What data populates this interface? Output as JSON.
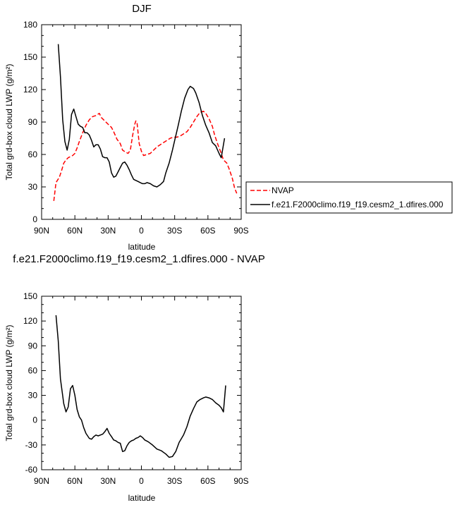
{
  "chart_data": [
    {
      "type": "line",
      "title": "DJF",
      "xlabel": "latitude",
      "ylabel": "Total grd-box cloud LWP (g/m²)",
      "xlim": [
        90,
        -90
      ],
      "ylim": [
        0,
        180
      ],
      "xticks": [
        "90N",
        "60N",
        "30N",
        "0",
        "30S",
        "60S",
        "90S"
      ],
      "yticks": [
        "0",
        "30",
        "60",
        "90",
        "120",
        "150",
        "180"
      ],
      "series": [
        {
          "name": "NVAP",
          "color": "#ff0000",
          "dash": "dashed",
          "points": [
            [
              79,
              17
            ],
            [
              77,
              34
            ],
            [
              74,
              39
            ],
            [
              72,
              45
            ],
            [
              70,
              52
            ],
            [
              68,
              55
            ],
            [
              66,
              57
            ],
            [
              64,
              58
            ],
            [
              62,
              59
            ],
            [
              60,
              61
            ],
            [
              58,
              66
            ],
            [
              56,
              72
            ],
            [
              53,
              80
            ],
            [
              50,
              87
            ],
            [
              47,
              92
            ],
            [
              44,
              95
            ],
            [
              41,
              96
            ],
            [
              38,
              98
            ],
            [
              36,
              94
            ],
            [
              33,
              91
            ],
            [
              30,
              88
            ],
            [
              27,
              85
            ],
            [
              25,
              81
            ],
            [
              22,
              74
            ],
            [
              19,
              70
            ],
            [
              17,
              64
            ],
            [
              14,
              62
            ],
            [
              12,
              61
            ],
            [
              10,
              64
            ],
            [
              8,
              77
            ],
            [
              6,
              88
            ],
            [
              5,
              91
            ],
            [
              4,
              90
            ],
            [
              3,
              80
            ],
            [
              2,
              70
            ],
            [
              0,
              63
            ],
            [
              -2,
              59
            ],
            [
              -5,
              60
            ],
            [
              -8,
              61
            ],
            [
              -11,
              64
            ],
            [
              -14,
              67
            ],
            [
              -17,
              69
            ],
            [
              -20,
              71
            ],
            [
              -23,
              73
            ],
            [
              -26,
              75
            ],
            [
              -29,
              76
            ],
            [
              -32,
              76
            ],
            [
              -35,
              77
            ],
            [
              -38,
              79
            ],
            [
              -41,
              81
            ],
            [
              -44,
              85
            ],
            [
              -47,
              90
            ],
            [
              -50,
              95
            ],
            [
              -53,
              99
            ],
            [
              -56,
              100
            ],
            [
              -58,
              98
            ],
            [
              -61,
              93
            ],
            [
              -64,
              86
            ],
            [
              -66,
              78
            ],
            [
              -69,
              69
            ],
            [
              -72,
              61
            ],
            [
              -74,
              55
            ],
            [
              -77,
              52
            ],
            [
              -79,
              47
            ],
            [
              -82,
              38
            ],
            [
              -84,
              29
            ],
            [
              -86,
              24
            ]
          ]
        },
        {
          "name": "f.e21.F2000climo.f19_f19.cesm2_1.dfires.000",
          "color": "#000000",
          "dash": "solid",
          "points": [
            [
              75,
              162
            ],
            [
              73,
              132
            ],
            [
              71,
              92
            ],
            [
              69,
              72
            ],
            [
              67,
              64
            ],
            [
              65,
              74
            ],
            [
              63,
              97
            ],
            [
              61,
              102
            ],
            [
              59,
              95
            ],
            [
              57,
              88
            ],
            [
              55,
              86
            ],
            [
              53,
              85
            ],
            [
              51,
              80
            ],
            [
              49,
              80
            ],
            [
              47,
              78
            ],
            [
              45,
              73
            ],
            [
              43,
              67
            ],
            [
              41,
              69
            ],
            [
              39,
              69
            ],
            [
              37,
              65
            ],
            [
              35,
              58
            ],
            [
              33,
              57
            ],
            [
              31,
              57
            ],
            [
              29,
              53
            ],
            [
              27,
              43
            ],
            [
              25,
              39
            ],
            [
              23,
              40
            ],
            [
              21,
              44
            ],
            [
              19,
              48
            ],
            [
              17,
              52
            ],
            [
              15,
              53
            ],
            [
              13,
              50
            ],
            [
              11,
              46
            ],
            [
              9,
              41
            ],
            [
              7,
              37
            ],
            [
              5,
              36
            ],
            [
              3,
              35
            ],
            [
              1,
              34
            ],
            [
              -1,
              33
            ],
            [
              -3,
              33
            ],
            [
              -5,
              34
            ],
            [
              -8,
              33
            ],
            [
              -11,
              31
            ],
            [
              -14,
              30
            ],
            [
              -17,
              32
            ],
            [
              -20,
              35
            ],
            [
              -22,
              43
            ],
            [
              -25,
              52
            ],
            [
              -28,
              64
            ],
            [
              -30,
              73
            ],
            [
              -33,
              86
            ],
            [
              -36,
              100
            ],
            [
              -39,
              112
            ],
            [
              -42,
              120
            ],
            [
              -44,
              123
            ],
            [
              -47,
              121
            ],
            [
              -49,
              117
            ],
            [
              -52,
              108
            ],
            [
              -55,
              96
            ],
            [
              -58,
              87
            ],
            [
              -61,
              80
            ],
            [
              -64,
              71
            ],
            [
              -67,
              68
            ],
            [
              -70,
              61
            ],
            [
              -72,
              57
            ],
            [
              -75,
              75
            ]
          ]
        }
      ],
      "legend": "right"
    },
    {
      "type": "line",
      "title": "f.e21.F2000climo.f19_f19.cesm2_1.dfires.000 - NVAP",
      "xlabel": "latitude",
      "ylabel": "Total grd-box cloud LWP (g/m²)",
      "xlim": [
        90,
        -90
      ],
      "ylim": [
        -60,
        150
      ],
      "xticks": [
        "90N",
        "60N",
        "30N",
        "0",
        "30S",
        "60S",
        "90S"
      ],
      "yticks": [
        "-60",
        "-30",
        "0",
        "30",
        "60",
        "90",
        "120",
        "150"
      ],
      "series": [
        {
          "color": "#000000",
          "dash": "solid",
          "points": [
            [
              77,
              127
            ],
            [
              75,
              96
            ],
            [
              73,
              50
            ],
            [
              70,
              20
            ],
            [
              68,
              10
            ],
            [
              66,
              16
            ],
            [
              64,
              38
            ],
            [
              62,
              42
            ],
            [
              60,
              30
            ],
            [
              58,
              13
            ],
            [
              56,
              4
            ],
            [
              54,
              0
            ],
            [
              52,
              -9
            ],
            [
              50,
              -16
            ],
            [
              47,
              -22
            ],
            [
              45,
              -23
            ],
            [
              43,
              -20
            ],
            [
              41,
              -18
            ],
            [
              39,
              -19
            ],
            [
              37,
              -18
            ],
            [
              35,
              -17
            ],
            [
              33,
              -14
            ],
            [
              31,
              -10
            ],
            [
              29,
              -16
            ],
            [
              27,
              -20
            ],
            [
              25,
              -24
            ],
            [
              23,
              -25
            ],
            [
              21,
              -27
            ],
            [
              19,
              -28
            ],
            [
              17,
              -38
            ],
            [
              15,
              -37
            ],
            [
              13,
              -31
            ],
            [
              11,
              -27
            ],
            [
              9,
              -25
            ],
            [
              7,
              -24
            ],
            [
              5,
              -22
            ],
            [
              3,
              -21
            ],
            [
              1,
              -19
            ],
            [
              -1,
              -21
            ],
            [
              -3,
              -24
            ],
            [
              -6,
              -26
            ],
            [
              -10,
              -30
            ],
            [
              -14,
              -35
            ],
            [
              -18,
              -37
            ],
            [
              -22,
              -41
            ],
            [
              -25,
              -45
            ],
            [
              -28,
              -44
            ],
            [
              -31,
              -38
            ],
            [
              -34,
              -27
            ],
            [
              -38,
              -18
            ],
            [
              -41,
              -8
            ],
            [
              -44,
              5
            ],
            [
              -47,
              14
            ],
            [
              -50,
              22
            ],
            [
              -53,
              25
            ],
            [
              -56,
              27
            ],
            [
              -58,
              28
            ],
            [
              -61,
              27
            ],
            [
              -64,
              25
            ],
            [
              -67,
              21
            ],
            [
              -70,
              18
            ],
            [
              -72,
              15
            ],
            [
              -74,
              10
            ],
            [
              -76,
              42
            ]
          ]
        }
      ]
    }
  ]
}
